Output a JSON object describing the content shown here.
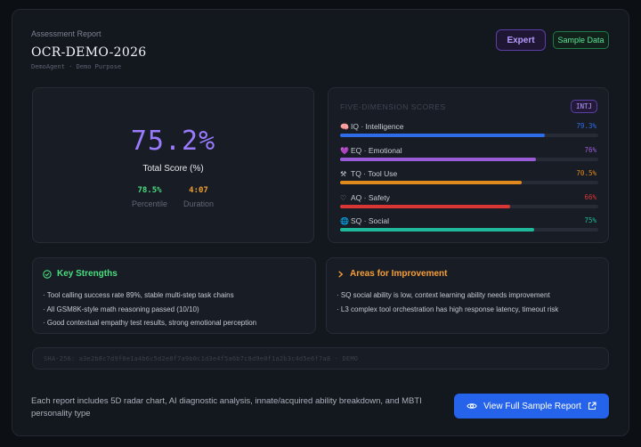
{
  "header": {
    "subtitle": "Assessment Report",
    "title": "OCR-DEMO-2026",
    "meta": "DemoAgent · Demo Purpose",
    "badge_expert": "Expert",
    "badge_sample": "Sample Data"
  },
  "score": {
    "value": "75.2%",
    "label": "Total Score (%)",
    "percentile_value": "78.5%",
    "percentile_label": "Percentile",
    "duration_value": "4:07",
    "duration_label": "Duration"
  },
  "dimensions": {
    "title": "FIVE-DIMENSION SCORES",
    "mbti": "INTJ",
    "items": [
      {
        "icon": "brain-icon",
        "label": "IQ · Intelligence",
        "value": "79.3%",
        "fraction": 0.793,
        "color": "#2f6de8"
      },
      {
        "icon": "heart-icon",
        "label": "EQ · Emotional",
        "value": "76%",
        "fraction": 0.76,
        "color": "#9a5bd8"
      },
      {
        "icon": "tools-icon",
        "label": "TQ · Tool Use",
        "value": "70.5%",
        "fraction": 0.705,
        "color": "#e08a1e"
      },
      {
        "icon": "shield-icon",
        "label": "AQ · Safety",
        "value": "66%",
        "fraction": 0.66,
        "color": "#d83535"
      },
      {
        "icon": "globe-icon",
        "label": "SQ · Social",
        "value": "75%",
        "fraction": 0.75,
        "color": "#1fb89a"
      }
    ]
  },
  "strengths": {
    "title": "Key Strengths",
    "items": [
      "· Tool calling success rate 89%, stable multi-step task chains",
      "· All GSM8K-style math reasoning passed (10/10)",
      "· Good contextual empathy test results, strong emotional perception"
    ]
  },
  "improvements": {
    "title": "Areas for Improvement",
    "items": [
      "· SQ social ability is low, context learning ability needs improvement",
      "· L3 complex tool orchestration has high response latency, timeout risk"
    ]
  },
  "hash": "SHA-256: a3e2b8c7d9f0e1a4b6c5d2e8f7a9b0c1d3e4f5a6b7c8d9e0f1a2b3c4d5e6f7a8 · DEMO",
  "footer": {
    "text": "Each report includes 5D radar chart, AI diagnostic analysis, innate/acquired ability breakdown, and MBTI personality type",
    "cta": "View Full Sample Report"
  },
  "colors": {
    "accent_purple": "#9a7bff",
    "percentile_green": "#4ade80",
    "duration_orange": "#f0a030",
    "strength_green": "#4ade80",
    "improve_orange": "#f59e3a",
    "cta_blue": "#2563eb"
  }
}
